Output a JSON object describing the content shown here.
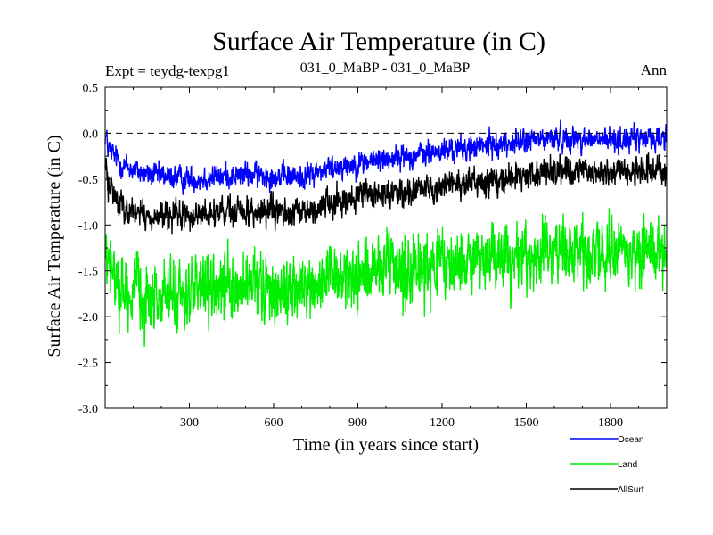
{
  "chart_data": {
    "type": "line",
    "title": "Surface Air Temperature (in C)",
    "subtitle_left": "Expt = teydg-texpg1",
    "subtitle_center": "031_0_MaBP - 031_0_MaBP",
    "subtitle_right": "Ann",
    "xlabel": "Time (in years since start)",
    "ylabel": "Surface Air Temperature (in C)",
    "xlim": [
      0,
      2000
    ],
    "ylim": [
      -3.0,
      0.5
    ],
    "x_ticks": [
      300,
      600,
      900,
      1200,
      1500,
      1800
    ],
    "x_tick_labels": [
      "300",
      "600",
      "900",
      "1200",
      "1500",
      "1800"
    ],
    "y_ticks": [
      -3.0,
      -2.5,
      -2.0,
      -1.5,
      -1.0,
      -0.5,
      0.0,
      0.5
    ],
    "y_tick_labels": [
      "-3.0",
      "-2.5",
      "-2.0",
      "-1.5",
      "-1.0",
      "-0.5",
      "0.0",
      "0.5"
    ],
    "reference_line": 0.0,
    "legend_position": "bottom-right",
    "series": [
      {
        "name": "Ocean",
        "color": "#0000ff",
        "trend_x": [
          0,
          10,
          60,
          150,
          300,
          500,
          700,
          800,
          1000,
          1200,
          1400,
          1600,
          1800,
          2000
        ],
        "trend_y": [
          0.0,
          -0.15,
          -0.35,
          -0.45,
          -0.5,
          -0.45,
          -0.48,
          -0.38,
          -0.28,
          -0.2,
          -0.12,
          -0.05,
          -0.08,
          -0.05
        ],
        "noise": 0.12,
        "n_points": 2000
      },
      {
        "name": "Land",
        "color": "#00ee00",
        "trend_x": [
          0,
          10,
          60,
          150,
          300,
          500,
          700,
          800,
          1000,
          1200,
          1400,
          1600,
          1800,
          2000
        ],
        "trend_y": [
          -1.35,
          -1.45,
          -1.7,
          -1.8,
          -1.75,
          -1.7,
          -1.72,
          -1.6,
          -1.5,
          -1.45,
          -1.35,
          -1.3,
          -1.3,
          -1.25
        ],
        "noise": 0.32,
        "n_points": 2000
      },
      {
        "name": "AllSurf",
        "color": "#000000",
        "trend_x": [
          0,
          10,
          60,
          150,
          300,
          500,
          700,
          800,
          1000,
          1200,
          1400,
          1600,
          1800,
          2000
        ],
        "trend_y": [
          -0.35,
          -0.55,
          -0.8,
          -0.92,
          -0.9,
          -0.85,
          -0.88,
          -0.75,
          -0.65,
          -0.58,
          -0.5,
          -0.42,
          -0.42,
          -0.4
        ],
        "noise": 0.14,
        "n_points": 2000
      }
    ]
  }
}
